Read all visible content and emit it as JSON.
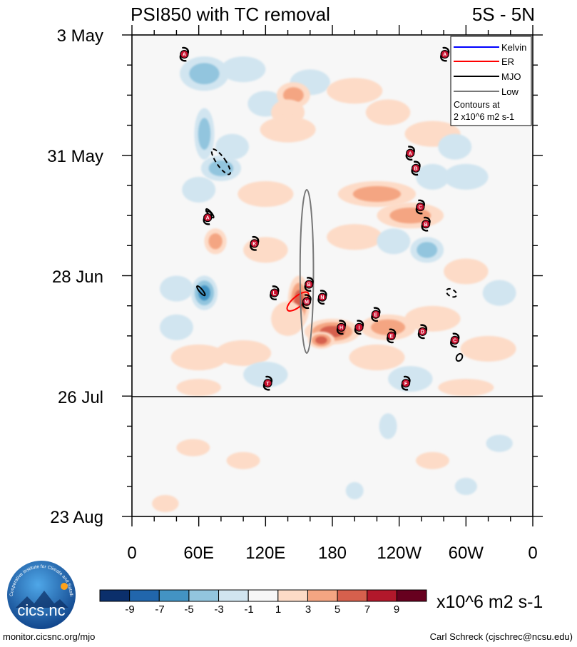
{
  "chart_data": {
    "type": "heatmap",
    "title": "PSI850 with TC removal",
    "subtitle": "5S - 5N",
    "xlabel": "",
    "ylabel": "",
    "x_tick_labels": [
      "0",
      "60E",
      "120E",
      "180",
      "120W",
      "60W",
      "0"
    ],
    "x_range_deg_east": [
      0,
      360
    ],
    "y_tick_labels": [
      "3 May",
      "31 May",
      "28 Jun",
      "26 Jul",
      "23 Aug"
    ],
    "y_range_days_from_3_May": [
      0,
      112
    ],
    "data_end_day": 84,
    "colorbar": {
      "units": "x10^6 m2 s-1",
      "tick_labels": [
        "-9",
        "-7",
        "-5",
        "-3",
        "-1",
        "1",
        "3",
        "5",
        "7",
        "9"
      ],
      "colors": [
        "#0b2f6b",
        "#2166ac",
        "#4393c3",
        "#92c5de",
        "#d1e5f0",
        "#f7f7f7",
        "#fddbc7",
        "#f4a582",
        "#d6604d",
        "#b2182b",
        "#67001f"
      ]
    },
    "legend": {
      "position": "top-right",
      "entries": [
        {
          "label": "Kelvin",
          "color": "#0000ff"
        },
        {
          "label": "ER",
          "color": "#ff0000"
        },
        {
          "label": "MJO",
          "color": "#000000"
        },
        {
          "label": "Low",
          "color": "#777777"
        }
      ],
      "note_line1": "Contours at",
      "note_line2": "2 x10^6 m2 s-1"
    },
    "anomaly_blobs": [
      {
        "lon": 65,
        "day": 9,
        "value": -4,
        "rlon": 22,
        "rday": 4
      },
      {
        "lon": 100,
        "day": 8,
        "value": -3,
        "rlon": 20,
        "rday": 3
      },
      {
        "lon": 160,
        "day": 11,
        "value": -3,
        "rlon": 18,
        "rday": 3
      },
      {
        "lon": 120,
        "day": 16,
        "value": -2,
        "rlon": 16,
        "rday": 3
      },
      {
        "lon": 145,
        "day": 14,
        "value": 5,
        "rlon": 15,
        "rday": 3
      },
      {
        "lon": 140,
        "day": 18,
        "value": 3,
        "rlon": 15,
        "rday": 3
      },
      {
        "lon": 200,
        "day": 13,
        "value": 2,
        "rlon": 25,
        "rday": 3
      },
      {
        "lon": 230,
        "day": 18,
        "value": 2,
        "rlon": 20,
        "rday": 3
      },
      {
        "lon": 65,
        "day": 23,
        "value": -5,
        "rlon": 9,
        "rday": 6
      },
      {
        "lon": 80,
        "day": 31,
        "value": -4,
        "rlon": 18,
        "rday": 3
      },
      {
        "lon": 60,
        "day": 36,
        "value": -3,
        "rlon": 15,
        "rday": 3
      },
      {
        "lon": 90,
        "day": 26,
        "value": -2,
        "rlon": 15,
        "rday": 3
      },
      {
        "lon": 140,
        "day": 22,
        "value": 2,
        "rlon": 25,
        "rday": 3
      },
      {
        "lon": 120,
        "day": 37,
        "value": 2,
        "rlon": 25,
        "rday": 3
      },
      {
        "lon": 220,
        "day": 37,
        "value": 5,
        "rlon": 35,
        "rday": 3
      },
      {
        "lon": 250,
        "day": 42,
        "value": 5,
        "rlon": 30,
        "rday": 3
      },
      {
        "lon": 200,
        "day": 47,
        "value": 3,
        "rlon": 25,
        "rday": 3
      },
      {
        "lon": 270,
        "day": 23,
        "value": 2,
        "rlon": 25,
        "rday": 3
      },
      {
        "lon": 290,
        "day": 26,
        "value": -2,
        "rlon": 15,
        "rday": 3
      },
      {
        "lon": 300,
        "day": 33,
        "value": -3,
        "rlon": 20,
        "rday": 3
      },
      {
        "lon": 265,
        "day": 50,
        "value": -4,
        "rlon": 15,
        "rday": 3
      },
      {
        "lon": 270,
        "day": 33,
        "value": -2,
        "rlon": 15,
        "rday": 3
      },
      {
        "lon": 235,
        "day": 48,
        "value": -2,
        "rlon": 15,
        "rday": 3
      },
      {
        "lon": 75,
        "day": 48,
        "value": 4,
        "rlon": 10,
        "rday": 3
      },
      {
        "lon": 120,
        "day": 50,
        "value": 2,
        "rlon": 20,
        "rday": 3
      },
      {
        "lon": 65,
        "day": 60,
        "value": -6,
        "rlon": 12,
        "rday": 4
      },
      {
        "lon": 40,
        "day": 59,
        "value": -3,
        "rlon": 15,
        "rday": 3
      },
      {
        "lon": 40,
        "day": 68,
        "value": -2,
        "rlon": 15,
        "rday": 3
      },
      {
        "lon": 150,
        "day": 62,
        "value": 6,
        "rlon": 10,
        "rday": 6
      },
      {
        "lon": 140,
        "day": 66,
        "value": 3,
        "rlon": 15,
        "rday": 4
      },
      {
        "lon": 180,
        "day": 69,
        "value": 6,
        "rlon": 25,
        "rday": 3
      },
      {
        "lon": 170,
        "day": 71,
        "value": 7,
        "rlon": 12,
        "rday": 2
      },
      {
        "lon": 230,
        "day": 68,
        "value": 4,
        "rlon": 25,
        "rday": 3
      },
      {
        "lon": 270,
        "day": 66,
        "value": 3,
        "rlon": 25,
        "rday": 3
      },
      {
        "lon": 320,
        "day": 73,
        "value": 3,
        "rlon": 25,
        "rday": 3
      },
      {
        "lon": 100,
        "day": 74,
        "value": 3,
        "rlon": 25,
        "rday": 3
      },
      {
        "lon": 60,
        "day": 75,
        "value": 2,
        "rlon": 25,
        "rday": 3
      },
      {
        "lon": 220,
        "day": 75,
        "value": 2,
        "rlon": 25,
        "rday": 3
      },
      {
        "lon": 120,
        "day": 79,
        "value": -2,
        "rlon": 20,
        "rday": 3
      },
      {
        "lon": 250,
        "day": 80,
        "value": -2,
        "rlon": 20,
        "rday": 3
      },
      {
        "lon": 300,
        "day": 82,
        "value": 2,
        "rlon": 25,
        "rday": 2
      },
      {
        "lon": 60,
        "day": 82,
        "value": 2,
        "rlon": 20,
        "rday": 2
      },
      {
        "lon": 330,
        "day": 60,
        "value": -2,
        "rlon": 15,
        "rday": 3
      },
      {
        "lon": 300,
        "day": 55,
        "value": 2,
        "rlon": 20,
        "rday": 3
      },
      {
        "lon": 230,
        "day": 91,
        "value": -2,
        "rlon": 8,
        "rday": 3
      },
      {
        "lon": 55,
        "day": 96,
        "value": 2,
        "rlon": 15,
        "rday": 2
      },
      {
        "lon": 100,
        "day": 99,
        "value": 2,
        "rlon": 15,
        "rday": 2
      },
      {
        "lon": 270,
        "day": 99,
        "value": 2,
        "rlon": 15,
        "rday": 2
      },
      {
        "lon": 330,
        "day": 95,
        "value": -2,
        "rlon": 12,
        "rday": 2
      },
      {
        "lon": 300,
        "day": 105,
        "value": -2,
        "rlon": 10,
        "rday": 2
      },
      {
        "lon": 30,
        "day": 109,
        "value": 2,
        "rlon": 12,
        "rday": 2
      },
      {
        "lon": 200,
        "day": 106,
        "value": -2,
        "rlon": 8,
        "rday": 2
      }
    ],
    "wave_contours": [
      {
        "type": "MJO",
        "dashed": true,
        "lon": 80,
        "day": 29.5,
        "rlon": 4,
        "rday": 3.5,
        "angle": -35
      },
      {
        "type": "MJO",
        "dashed": false,
        "lon": 70,
        "day": 41.5,
        "rlon": 1.5,
        "rday": 1.3,
        "angle": -40
      },
      {
        "type": "MJO",
        "dashed": false,
        "lon": 62,
        "day": 59.5,
        "rlon": 1.5,
        "rday": 1.4,
        "angle": -40
      },
      {
        "type": "MJO",
        "dashed": true,
        "lon": 287,
        "day": 60,
        "rlon": 5,
        "rday": 0.8,
        "angle": 30
      },
      {
        "type": "MJO",
        "dashed": false,
        "lon": 294,
        "day": 75,
        "rlon": 2.5,
        "rday": 0.9,
        "angle": 30
      },
      {
        "type": "ER",
        "dashed": false,
        "lon": 149,
        "day": 62,
        "rlon": 12,
        "rday": 1.2,
        "angle": -40
      },
      {
        "type": "Low",
        "dashed": false,
        "lon": 157,
        "day": 55,
        "rlon": 6,
        "rday": 19,
        "angle": 0
      }
    ],
    "storm_markers": [
      {
        "letter": "A",
        "lon": 47,
        "day": 4.5
      },
      {
        "letter": "A",
        "lon": 281,
        "day": 4.5
      },
      {
        "letter": "A",
        "lon": 250,
        "day": 27.5
      },
      {
        "letter": "B",
        "lon": 255,
        "day": 31
      },
      {
        "letter": "A",
        "lon": 68,
        "day": 42.5
      },
      {
        "letter": "C",
        "lon": 259,
        "day": 40
      },
      {
        "letter": "B",
        "lon": 264,
        "day": 44
      },
      {
        "letter": "K",
        "lon": 110,
        "day": 48.5
      },
      {
        "letter": "B",
        "lon": 159,
        "day": 58
      },
      {
        "letter": "L",
        "lon": 128,
        "day": 60
      },
      {
        "letter": "N",
        "lon": 171,
        "day": 61
      },
      {
        "letter": "M",
        "lon": 157,
        "day": 62
      },
      {
        "letter": "E",
        "lon": 219,
        "day": 65
      },
      {
        "letter": "H",
        "lon": 188,
        "day": 68
      },
      {
        "letter": "I",
        "lon": 204,
        "day": 68
      },
      {
        "letter": "E",
        "lon": 233,
        "day": 70
      },
      {
        "letter": "D",
        "lon": 261,
        "day": 69
      },
      {
        "letter": "C",
        "lon": 290,
        "day": 71
      },
      {
        "letter": "T",
        "lon": 122,
        "day": 81
      },
      {
        "letter": "F",
        "lon": 246,
        "day": 81
      }
    ]
  },
  "branding": {
    "logo_text": "cics.nc",
    "logo_ring_text": "Cooperative Institute for Climate and Satellites",
    "footer_left": "monitor.cicsnc.org/mjo",
    "footer_right": "Carl Schreck (cjschrec@ncsu.edu)"
  }
}
